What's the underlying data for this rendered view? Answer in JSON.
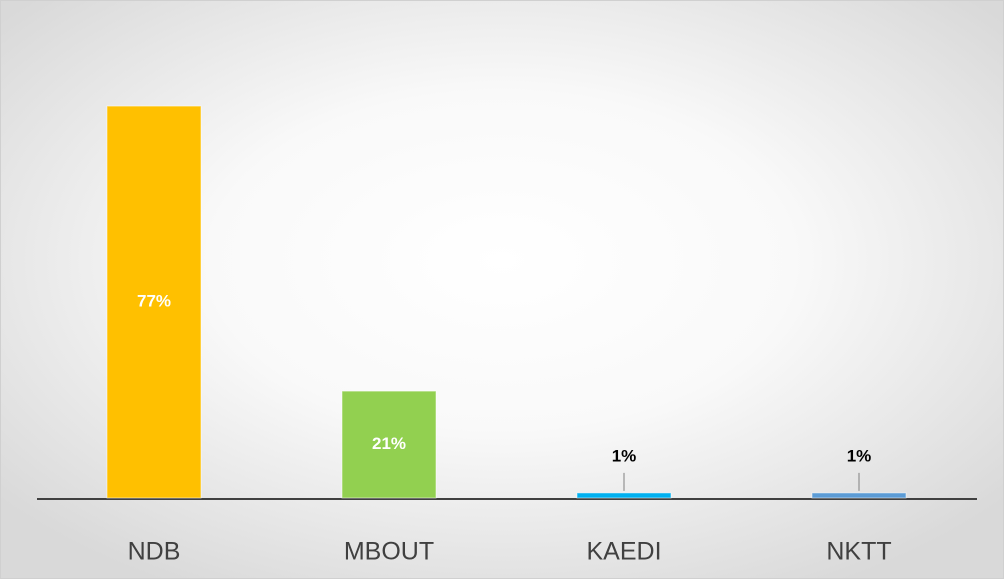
{
  "chart_data": {
    "type": "bar",
    "categories": [
      "NDB",
      "MBOUT",
      "KAEDI",
      "NKTT"
    ],
    "values": [
      77,
      21,
      1,
      1
    ],
    "value_labels": [
      "77%",
      "21%",
      "1%",
      "1%"
    ],
    "colors": [
      "#ffc000",
      "#92d050",
      "#00b0f0",
      "#5b9bd5"
    ]
  }
}
